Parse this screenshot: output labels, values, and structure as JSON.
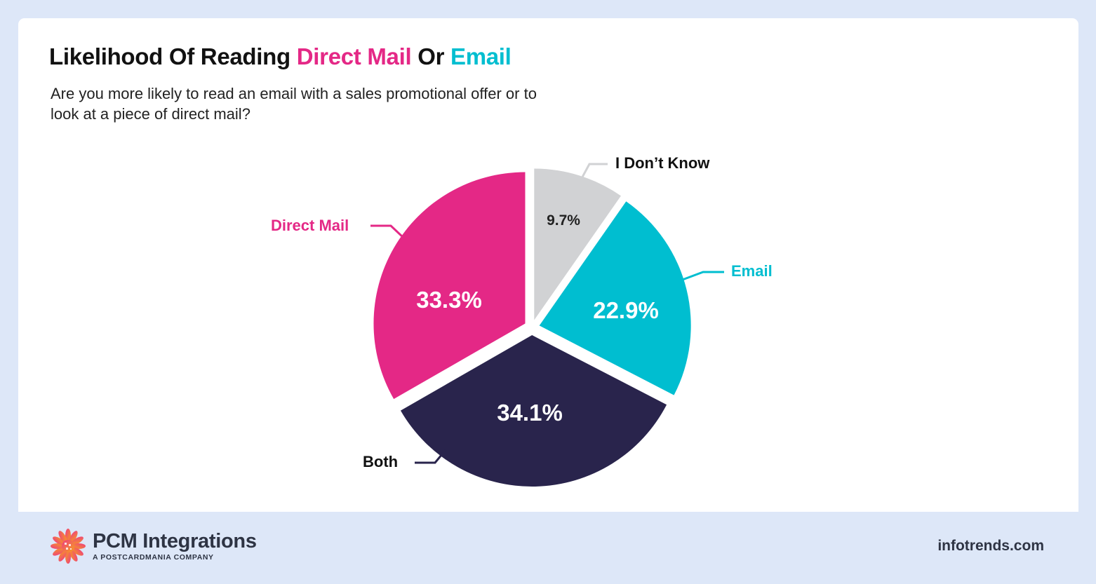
{
  "header": {
    "title_prefix": "Likelihood Of Reading ",
    "title_direct_mail": "Direct Mail",
    "title_or": " Or ",
    "title_email": "Email",
    "subtitle": "Are you more likely to read an email with a sales promotional offer or to look at a piece of direct mail?"
  },
  "colors": {
    "direct_mail": "#e42886",
    "email": "#00bed0",
    "both": "#29244c",
    "dont_know": "#d1d2d4",
    "background": "#dde7f8"
  },
  "labels": {
    "dont_know": "I Don’t Know",
    "email": "Email",
    "both": "Both",
    "direct_mail": "Direct Mail"
  },
  "values_text": {
    "dont_know": "9.7%",
    "email": "22.9%",
    "both": "34.1%",
    "direct_mail": "33.3%"
  },
  "footer": {
    "brand_name": "PCM Integrations",
    "brand_tagline": "A POSTCARDMANIA COMPANY",
    "site": "infotrends.com"
  },
  "chart_data": {
    "type": "pie",
    "title": "Likelihood Of Reading Direct Mail Or Email",
    "subtitle": "Are you more likely to read an email with a sales promotional offer or to look at a piece of direct mail?",
    "categories": [
      "I Don’t Know",
      "Email",
      "Both",
      "Direct Mail"
    ],
    "values": [
      9.7,
      22.9,
      34.1,
      33.3
    ],
    "unit": "%",
    "colors": [
      "#d1d2d4",
      "#00bed0",
      "#29244c",
      "#e42886"
    ],
    "start_angle": "12 o'clock, clockwise",
    "exploded": true,
    "legend": "callout labels"
  }
}
